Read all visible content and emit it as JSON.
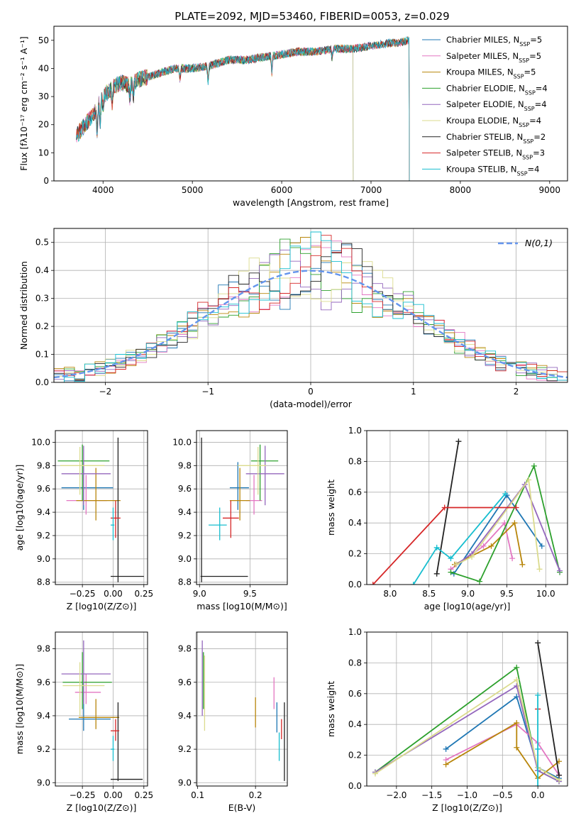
{
  "figure_title": "PLATE=2092, MJD=53460, FIBERID=0053, z=0.029",
  "colors": {
    "chabrier_miles": "#1f77b4",
    "salpeter_miles": "#e377c2",
    "kroupa_miles": "#b8860b",
    "chabrier_elodie": "#2ca02c",
    "salpeter_elodie": "#9467bd",
    "kroupa_elodie": "#dbdb8d",
    "chabrier_stelib": "#222222",
    "salpeter_stelib": "#d62728",
    "kroupa_stelib": "#17becf",
    "grid": "#b0b0b0",
    "gaussian": "#6495ed"
  },
  "chart_data": [
    {
      "id": "spectrum",
      "type": "line",
      "xlabel": "wavelength [Angstrom, rest frame]",
      "ylabel": "Flux [fλ10⁻¹⁷ erg cm⁻² s⁻¹ A⁻¹]",
      "xlim": [
        3450,
        9200
      ],
      "ylim": [
        0,
        55
      ],
      "xticks": [
        "4000",
        "5000",
        "6000",
        "7000",
        "8000",
        "9000"
      ],
      "yticks": [
        "0",
        "10",
        "20",
        "30",
        "40",
        "50"
      ],
      "grid": false,
      "legend": "top-right",
      "continuum": {
        "x": [
          3700,
          3800,
          3900,
          4000,
          4100,
          4200,
          4300,
          4400,
          4600,
          4800,
          5000,
          5200,
          5400,
          5600,
          5800,
          6000,
          6200,
          6400,
          6600,
          6800,
          7000,
          7200,
          7300,
          7420
        ],
        "y": [
          16,
          20,
          24,
          30,
          33,
          35,
          34,
          36,
          38,
          40,
          40,
          41,
          43,
          43,
          44,
          45,
          46,
          46,
          47,
          47,
          48,
          49,
          49,
          50
        ]
      },
      "series": [
        {
          "name": "Chabrier MILES, N_SSP=5",
          "color_key": "chabrier_miles",
          "xmin": 3700,
          "xmax": 7430
        },
        {
          "name": "Salpeter MILES, N_SSP=5",
          "color_key": "salpeter_miles",
          "xmin": 3700,
          "xmax": 7430
        },
        {
          "name": "Kroupa MILES, N_SSP=5",
          "color_key": "kroupa_miles",
          "xmin": 3700,
          "xmax": 7430
        },
        {
          "name": "Chabrier ELODIE, N_SSP=4",
          "color_key": "chabrier_elodie",
          "xmin": 3900,
          "xmax": 6800
        },
        {
          "name": "Salpeter ELODIE, N_SSP=4",
          "color_key": "salpeter_elodie",
          "xmin": 3900,
          "xmax": 6800
        },
        {
          "name": "Kroupa ELODIE, N_SSP=4",
          "color_key": "kroupa_elodie",
          "xmin": 3900,
          "xmax": 6800
        },
        {
          "name": "Chabrier STELIB, N_SSP=2",
          "color_key": "chabrier_stelib",
          "xmin": 3700,
          "xmax": 7430
        },
        {
          "name": "Salpeter STELIB, N_SSP=3",
          "color_key": "salpeter_stelib",
          "xmin": 3700,
          "xmax": 7430
        },
        {
          "name": "Kroupa STELIB, N_SSP=4",
          "color_key": "kroupa_stelib",
          "xmin": 3700,
          "xmax": 7430
        }
      ]
    },
    {
      "id": "residuals",
      "type": "line",
      "xlabel": "(data-model)/error",
      "ylabel": "Normed distribution",
      "xlim": [
        -2.5,
        2.5
      ],
      "ylim": [
        0,
        0.55
      ],
      "xticks": [
        "−2",
        "−1",
        "0",
        "1",
        "2"
      ],
      "yticks": [
        "0.0",
        "0.1",
        "0.2",
        "0.3",
        "0.4",
        "0.5"
      ],
      "grid": true,
      "legend": "top-right",
      "legend_label": "N(0,1)",
      "gaussian": {
        "mean": 0,
        "sigma": 1
      }
    },
    {
      "id": "age_vs_z",
      "type": "scatter",
      "xlabel": "Z [log10(Z/Z⊙)]",
      "ylabel": "age [log10(age/yr)]",
      "xlim": [
        -0.47,
        0.28
      ],
      "ylim": [
        8.78,
        10.1
      ],
      "xticks": [
        "−0.25",
        "0.00",
        "0.25"
      ],
      "yticks": [
        "8.8",
        "9.0",
        "9.2",
        "9.4",
        "9.6",
        "9.8",
        "10.0"
      ],
      "grid": true,
      "points": [
        {
          "color_key": "chabrier_miles",
          "x": -0.24,
          "y": 9.61,
          "xlo": -0.42,
          "xhi": 0.0,
          "ylo": 9.42,
          "yhi": 9.83
        },
        {
          "color_key": "salpeter_miles",
          "x": -0.22,
          "y": 9.5,
          "xlo": -0.38,
          "xhi": -0.05,
          "ylo": 9.38,
          "yhi": 9.72
        },
        {
          "color_key": "kroupa_miles",
          "x": -0.14,
          "y": 9.5,
          "xlo": -0.3,
          "xhi": 0.06,
          "ylo": 9.33,
          "yhi": 9.78
        },
        {
          "color_key": "chabrier_elodie",
          "x": -0.25,
          "y": 9.84,
          "xlo": -0.45,
          "xhi": -0.03,
          "ylo": 9.5,
          "yhi": 9.98
        },
        {
          "color_key": "salpeter_elodie",
          "x": -0.24,
          "y": 9.73,
          "xlo": -0.42,
          "xhi": -0.02,
          "ylo": 9.46,
          "yhi": 9.97
        },
        {
          "color_key": "kroupa_elodie",
          "x": -0.27,
          "y": 9.8,
          "xlo": -0.43,
          "xhi": -0.07,
          "ylo": 9.55,
          "yhi": 9.96
        },
        {
          "color_key": "chabrier_stelib",
          "x": 0.04,
          "y": 8.85,
          "xlo": -0.02,
          "xhi": 0.25,
          "ylo": 8.8,
          "yhi": 10.04
        },
        {
          "color_key": "salpeter_stelib",
          "x": 0.02,
          "y": 9.35,
          "xlo": -0.02,
          "xhi": 0.06,
          "ylo": 9.18,
          "yhi": 9.5
        },
        {
          "color_key": "kroupa_stelib",
          "x": 0.0,
          "y": 9.29,
          "xlo": -0.02,
          "xhi": 0.01,
          "ylo": 9.16,
          "yhi": 9.44
        }
      ]
    },
    {
      "id": "age_vs_mass",
      "type": "scatter",
      "xlabel": "mass [log10(M/M⊙)]",
      "ylabel": "",
      "xlim": [
        8.97,
        9.87
      ],
      "ylim": [
        8.78,
        10.1
      ],
      "xticks": [
        "9.0",
        "9.5"
      ],
      "yticks": [
        "8.8",
        "9.0",
        "9.2",
        "9.4",
        "9.6",
        "9.8",
        "10.0"
      ],
      "grid": true,
      "points": [
        {
          "color_key": "chabrier_miles",
          "x": 9.38,
          "y": 9.61,
          "xlo": 9.3,
          "xhi": 9.49,
          "ylo": 9.42,
          "yhi": 9.83
        },
        {
          "color_key": "salpeter_miles",
          "x": 9.54,
          "y": 9.5,
          "xlo": 9.46,
          "xhi": 9.62,
          "ylo": 9.38,
          "yhi": 9.72
        },
        {
          "color_key": "kroupa_miles",
          "x": 9.4,
          "y": 9.5,
          "xlo": 9.3,
          "xhi": 9.5,
          "ylo": 9.33,
          "yhi": 9.78
        },
        {
          "color_key": "chabrier_elodie",
          "x": 9.6,
          "y": 9.84,
          "xlo": 9.51,
          "xhi": 9.78,
          "ylo": 9.5,
          "yhi": 9.98
        },
        {
          "color_key": "salpeter_elodie",
          "x": 9.65,
          "y": 9.73,
          "xlo": 9.46,
          "xhi": 9.84,
          "ylo": 9.46,
          "yhi": 9.97
        },
        {
          "color_key": "kroupa_elodie",
          "x": 9.58,
          "y": 9.8,
          "xlo": 9.38,
          "xhi": 9.66,
          "ylo": 9.55,
          "yhi": 9.96
        },
        {
          "color_key": "chabrier_stelib",
          "x": 9.02,
          "y": 8.85,
          "xlo": 9.01,
          "xhi": 9.48,
          "ylo": 8.8,
          "yhi": 10.04
        },
        {
          "color_key": "salpeter_stelib",
          "x": 9.31,
          "y": 9.35,
          "xlo": 9.23,
          "xhi": 9.39,
          "ylo": 9.18,
          "yhi": 9.5
        },
        {
          "color_key": "kroupa_stelib",
          "x": 9.2,
          "y": 9.29,
          "xlo": 9.09,
          "xhi": 9.27,
          "ylo": 9.16,
          "yhi": 9.44
        }
      ]
    },
    {
      "id": "weight_vs_age",
      "type": "line",
      "xlabel": "age [log10(age/yr)]",
      "ylabel": "mass weight",
      "xlim": [
        7.7,
        10.28
      ],
      "ylim": [
        0,
        1
      ],
      "xticks": [
        "8.0",
        "8.5",
        "9.0",
        "9.5",
        "10.0"
      ],
      "yticks": [
        "0.0",
        "0.2",
        "0.4",
        "0.6",
        "0.8",
        "1.0"
      ],
      "grid": true,
      "series": [
        {
          "color_key": "chabrier_miles",
          "x": [
            8.82,
            9.5,
            9.95
          ],
          "y": [
            0.07,
            0.58,
            0.25
          ]
        },
        {
          "color_key": "salpeter_miles",
          "x": [
            8.78,
            9.2,
            9.47,
            9.57
          ],
          "y": [
            0.1,
            0.25,
            0.4,
            0.17
          ]
        },
        {
          "color_key": "kroupa_miles",
          "x": [
            8.83,
            9.3,
            9.6,
            9.7
          ],
          "y": [
            0.13,
            0.25,
            0.4,
            0.13
          ]
        },
        {
          "color_key": "chabrier_elodie",
          "x": [
            8.78,
            9.15,
            9.85,
            10.18
          ],
          "y": [
            0.08,
            0.02,
            0.77,
            0.08
          ]
        },
        {
          "color_key": "salpeter_elodie",
          "x": [
            8.85,
            9.05,
            9.73,
            10.18
          ],
          "y": [
            0.13,
            0.2,
            0.65,
            0.09
          ]
        },
        {
          "color_key": "kroupa_elodie",
          "x": [
            8.85,
            9.05,
            9.78,
            9.92
          ],
          "y": [
            0.13,
            0.18,
            0.68,
            0.1
          ]
        },
        {
          "color_key": "chabrier_stelib",
          "x": [
            8.6,
            8.88
          ],
          "y": [
            0.07,
            0.93
          ]
        },
        {
          "color_key": "salpeter_stelib",
          "x": [
            7.78,
            8.7,
            9.62
          ],
          "y": [
            0.0,
            0.5,
            0.5
          ]
        },
        {
          "color_key": "kroupa_stelib",
          "x": [
            8.3,
            8.6,
            8.78,
            9.48
          ],
          "y": [
            0.0,
            0.24,
            0.17,
            0.59
          ]
        }
      ]
    },
    {
      "id": "mass_vs_z",
      "type": "scatter",
      "xlabel": "Z [log10(Z/Z⊙)]",
      "ylabel": "mass [log10(M/M⊙)]",
      "xlim": [
        -0.47,
        0.28
      ],
      "ylim": [
        8.98,
        9.9
      ],
      "xticks": [
        "−0.25",
        "0.00",
        "0.25"
      ],
      "yticks": [
        "9.0",
        "9.2",
        "9.4",
        "9.6",
        "9.8"
      ],
      "grid": true,
      "points": [
        {
          "color_key": "chabrier_miles",
          "x": -0.24,
          "y": 9.38,
          "xlo": -0.36,
          "xhi": -0.02,
          "ylo": 9.31,
          "yhi": 9.6
        },
        {
          "color_key": "salpeter_miles",
          "x": -0.22,
          "y": 9.54,
          "xlo": -0.31,
          "xhi": -0.1,
          "ylo": 9.47,
          "yhi": 9.65
        },
        {
          "color_key": "kroupa_miles",
          "x": -0.14,
          "y": 9.39,
          "xlo": -0.28,
          "xhi": 0.05,
          "ylo": 9.32,
          "yhi": 9.5
        },
        {
          "color_key": "chabrier_elodie",
          "x": -0.25,
          "y": 9.6,
          "xlo": -0.41,
          "xhi": -0.01,
          "ylo": 9.44,
          "yhi": 9.78
        },
        {
          "color_key": "salpeter_elodie",
          "x": -0.24,
          "y": 9.65,
          "xlo": -0.42,
          "xhi": -0.02,
          "ylo": 9.47,
          "yhi": 9.85
        },
        {
          "color_key": "kroupa_elodie",
          "x": -0.27,
          "y": 9.58,
          "xlo": -0.41,
          "xhi": -0.07,
          "ylo": 9.4,
          "yhi": 9.72
        },
        {
          "color_key": "chabrier_stelib",
          "x": 0.04,
          "y": 9.02,
          "xlo": -0.02,
          "xhi": 0.24,
          "ylo": 9.01,
          "yhi": 9.48
        },
        {
          "color_key": "salpeter_stelib",
          "x": 0.02,
          "y": 9.31,
          "xlo": -0.02,
          "xhi": 0.05,
          "ylo": 9.25,
          "yhi": 9.38
        },
        {
          "color_key": "kroupa_stelib",
          "x": 0.0,
          "y": 9.2,
          "xlo": -0.02,
          "xhi": 0.01,
          "ylo": 9.13,
          "yhi": 9.28
        }
      ]
    },
    {
      "id": "mass_vs_ebv",
      "type": "scatter",
      "xlabel": "E(B-V)",
      "ylabel": "",
      "xlim": [
        0.098,
        0.255
      ],
      "ylim": [
        8.98,
        9.9
      ],
      "xticks": [
        "0.1",
        "0.2"
      ],
      "yticks": [
        "9.0",
        "9.2",
        "9.4",
        "9.6",
        "9.8"
      ],
      "grid": true,
      "points": [
        {
          "color_key": "chabrier_miles",
          "x": 0.237,
          "y": 9.38,
          "ylo": 9.3,
          "yhi": 9.48
        },
        {
          "color_key": "salpeter_miles",
          "x": 0.232,
          "y": 9.54,
          "ylo": 9.44,
          "yhi": 9.63
        },
        {
          "color_key": "kroupa_miles",
          "x": 0.2,
          "y": 9.39,
          "ylo": 9.33,
          "yhi": 9.51
        },
        {
          "color_key": "chabrier_elodie",
          "x": 0.11,
          "y": 9.6,
          "ylo": 9.44,
          "yhi": 9.78
        },
        {
          "color_key": "salpeter_elodie",
          "x": 0.108,
          "y": 9.65,
          "ylo": 9.4,
          "yhi": 9.85
        },
        {
          "color_key": "kroupa_elodie",
          "x": 0.112,
          "y": 9.58,
          "ylo": 9.31,
          "yhi": 9.76
        },
        {
          "color_key": "chabrier_stelib",
          "x": 0.25,
          "y": 9.02,
          "ylo": 9.01,
          "yhi": 9.48
        },
        {
          "color_key": "salpeter_stelib",
          "x": 0.245,
          "y": 9.31,
          "ylo": 9.26,
          "yhi": 9.38
        },
        {
          "color_key": "kroupa_stelib",
          "x": 0.241,
          "y": 9.2,
          "ylo": 9.13,
          "yhi": 9.3
        }
      ]
    },
    {
      "id": "weight_vs_z",
      "type": "line",
      "xlabel": "Z [log10(Z/Z⊙)]",
      "ylabel": "mass weight",
      "xlim": [
        -2.42,
        0.42
      ],
      "ylim": [
        0,
        1
      ],
      "xticks": [
        "−2.0",
        "−1.5",
        "−1.0",
        "−0.5",
        "0.0"
      ],
      "yticks": [
        "0.0",
        "0.2",
        "0.4",
        "0.6",
        "0.8",
        "1.0"
      ],
      "grid": true,
      "series": [
        {
          "color_key": "chabrier_miles",
          "x": [
            -1.3,
            -0.3,
            0.0,
            0.3
          ],
          "y": [
            0.24,
            0.58,
            0.12,
            0.05
          ]
        },
        {
          "color_key": "salpeter_miles",
          "x": [
            -1.3,
            -0.3,
            0.0,
            0.3
          ],
          "y": [
            0.17,
            0.4,
            0.28,
            0.07
          ]
        },
        {
          "color_key": "kroupa_miles",
          "x": [
            -1.3,
            -0.3,
            -0.3,
            0.0,
            0.3
          ],
          "y": [
            0.14,
            0.41,
            0.25,
            0.05,
            0.16
          ]
        },
        {
          "color_key": "chabrier_elodie",
          "x": [
            -2.3,
            -0.3,
            0.0,
            0.3
          ],
          "y": [
            0.09,
            0.77,
            0.1,
            0.03
          ]
        },
        {
          "color_key": "salpeter_elodie",
          "x": [
            -2.3,
            -0.3,
            0.0,
            0.3
          ],
          "y": [
            0.09,
            0.65,
            0.1,
            0.03
          ]
        },
        {
          "color_key": "kroupa_elodie",
          "x": [
            -2.3,
            -0.3,
            0.0,
            0.3
          ],
          "y": [
            0.08,
            0.69,
            0.12,
            0.04
          ]
        },
        {
          "color_key": "chabrier_stelib",
          "x": [
            0.0,
            0.3
          ],
          "y": [
            0.93,
            0.07
          ]
        },
        {
          "color_key": "salpeter_stelib",
          "x": [
            0.0,
            0.0
          ],
          "y": [
            0.5,
            0.5
          ]
        },
        {
          "color_key": "kroupa_stelib",
          "x": [
            0.0,
            0.0,
            0.0
          ],
          "y": [
            0.59,
            0.24,
            0.0
          ]
        }
      ]
    }
  ]
}
